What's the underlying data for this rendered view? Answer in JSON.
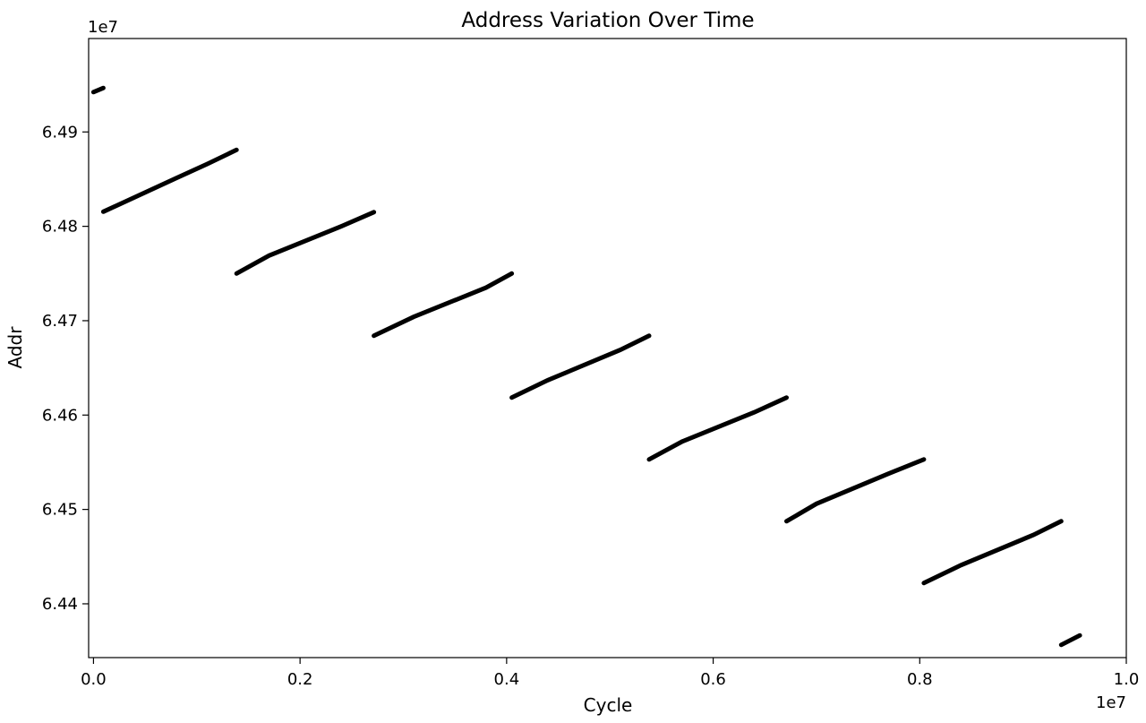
{
  "chart_data": {
    "type": "line",
    "title": "Address Variation Over Time",
    "xlabel": "Cycle",
    "ylabel": "Addr",
    "x_offset_text": "1e7",
    "y_offset_text": "1e7",
    "x_scale": 10000000,
    "y_scale": 10000000,
    "xlim": [
      -0.0047,
      1.0
    ],
    "ylim": [
      6.4343,
      6.4999
    ],
    "x_ticks": [
      0.0,
      0.2,
      0.4,
      0.6,
      0.8,
      1.0
    ],
    "x_tick_labels": [
      "0.0",
      "0.2",
      "0.4",
      "0.6",
      "0.8",
      "1.0"
    ],
    "y_ticks": [
      6.44,
      6.45,
      6.46,
      6.47,
      6.48,
      6.49
    ],
    "y_tick_labels": [
      "6.44",
      "6.45",
      "6.46",
      "6.47",
      "6.48",
      "6.49"
    ],
    "grid": false,
    "legend": "none",
    "line_color": "#000000",
    "segments": [
      {
        "x": [
          0.0,
          0.0095
        ],
        "y": [
          6.49422,
          6.49466
        ]
      },
      {
        "x": [
          0.0095,
          0.08,
          0.11,
          0.1385
        ],
        "y": [
          6.48155,
          6.4851,
          6.4866,
          6.4881
        ]
      },
      {
        "x": [
          0.1385,
          0.17,
          0.24,
          0.2715
        ],
        "y": [
          6.475,
          6.4769,
          6.48,
          6.4815
        ]
      },
      {
        "x": [
          0.2715,
          0.31,
          0.38,
          0.405
        ],
        "y": [
          6.4684,
          6.4704,
          6.4735,
          6.475
        ]
      },
      {
        "x": [
          0.405,
          0.44,
          0.51,
          0.538
        ],
        "y": [
          6.46185,
          6.4637,
          6.4669,
          6.4684
        ]
      },
      {
        "x": [
          0.538,
          0.57,
          0.64,
          0.671
        ],
        "y": [
          6.4553,
          6.4572,
          6.4603,
          6.46185
        ]
      },
      {
        "x": [
          0.671,
          0.7,
          0.77,
          0.804
        ],
        "y": [
          6.44875,
          6.4506,
          6.4538,
          6.4553
        ]
      },
      {
        "x": [
          0.804,
          0.84,
          0.91,
          0.937
        ],
        "y": [
          6.4422,
          6.4441,
          6.4473,
          6.44875
        ]
      },
      {
        "x": [
          0.937,
          0.955
        ],
        "y": [
          6.43565,
          6.43665
        ]
      }
    ]
  }
}
